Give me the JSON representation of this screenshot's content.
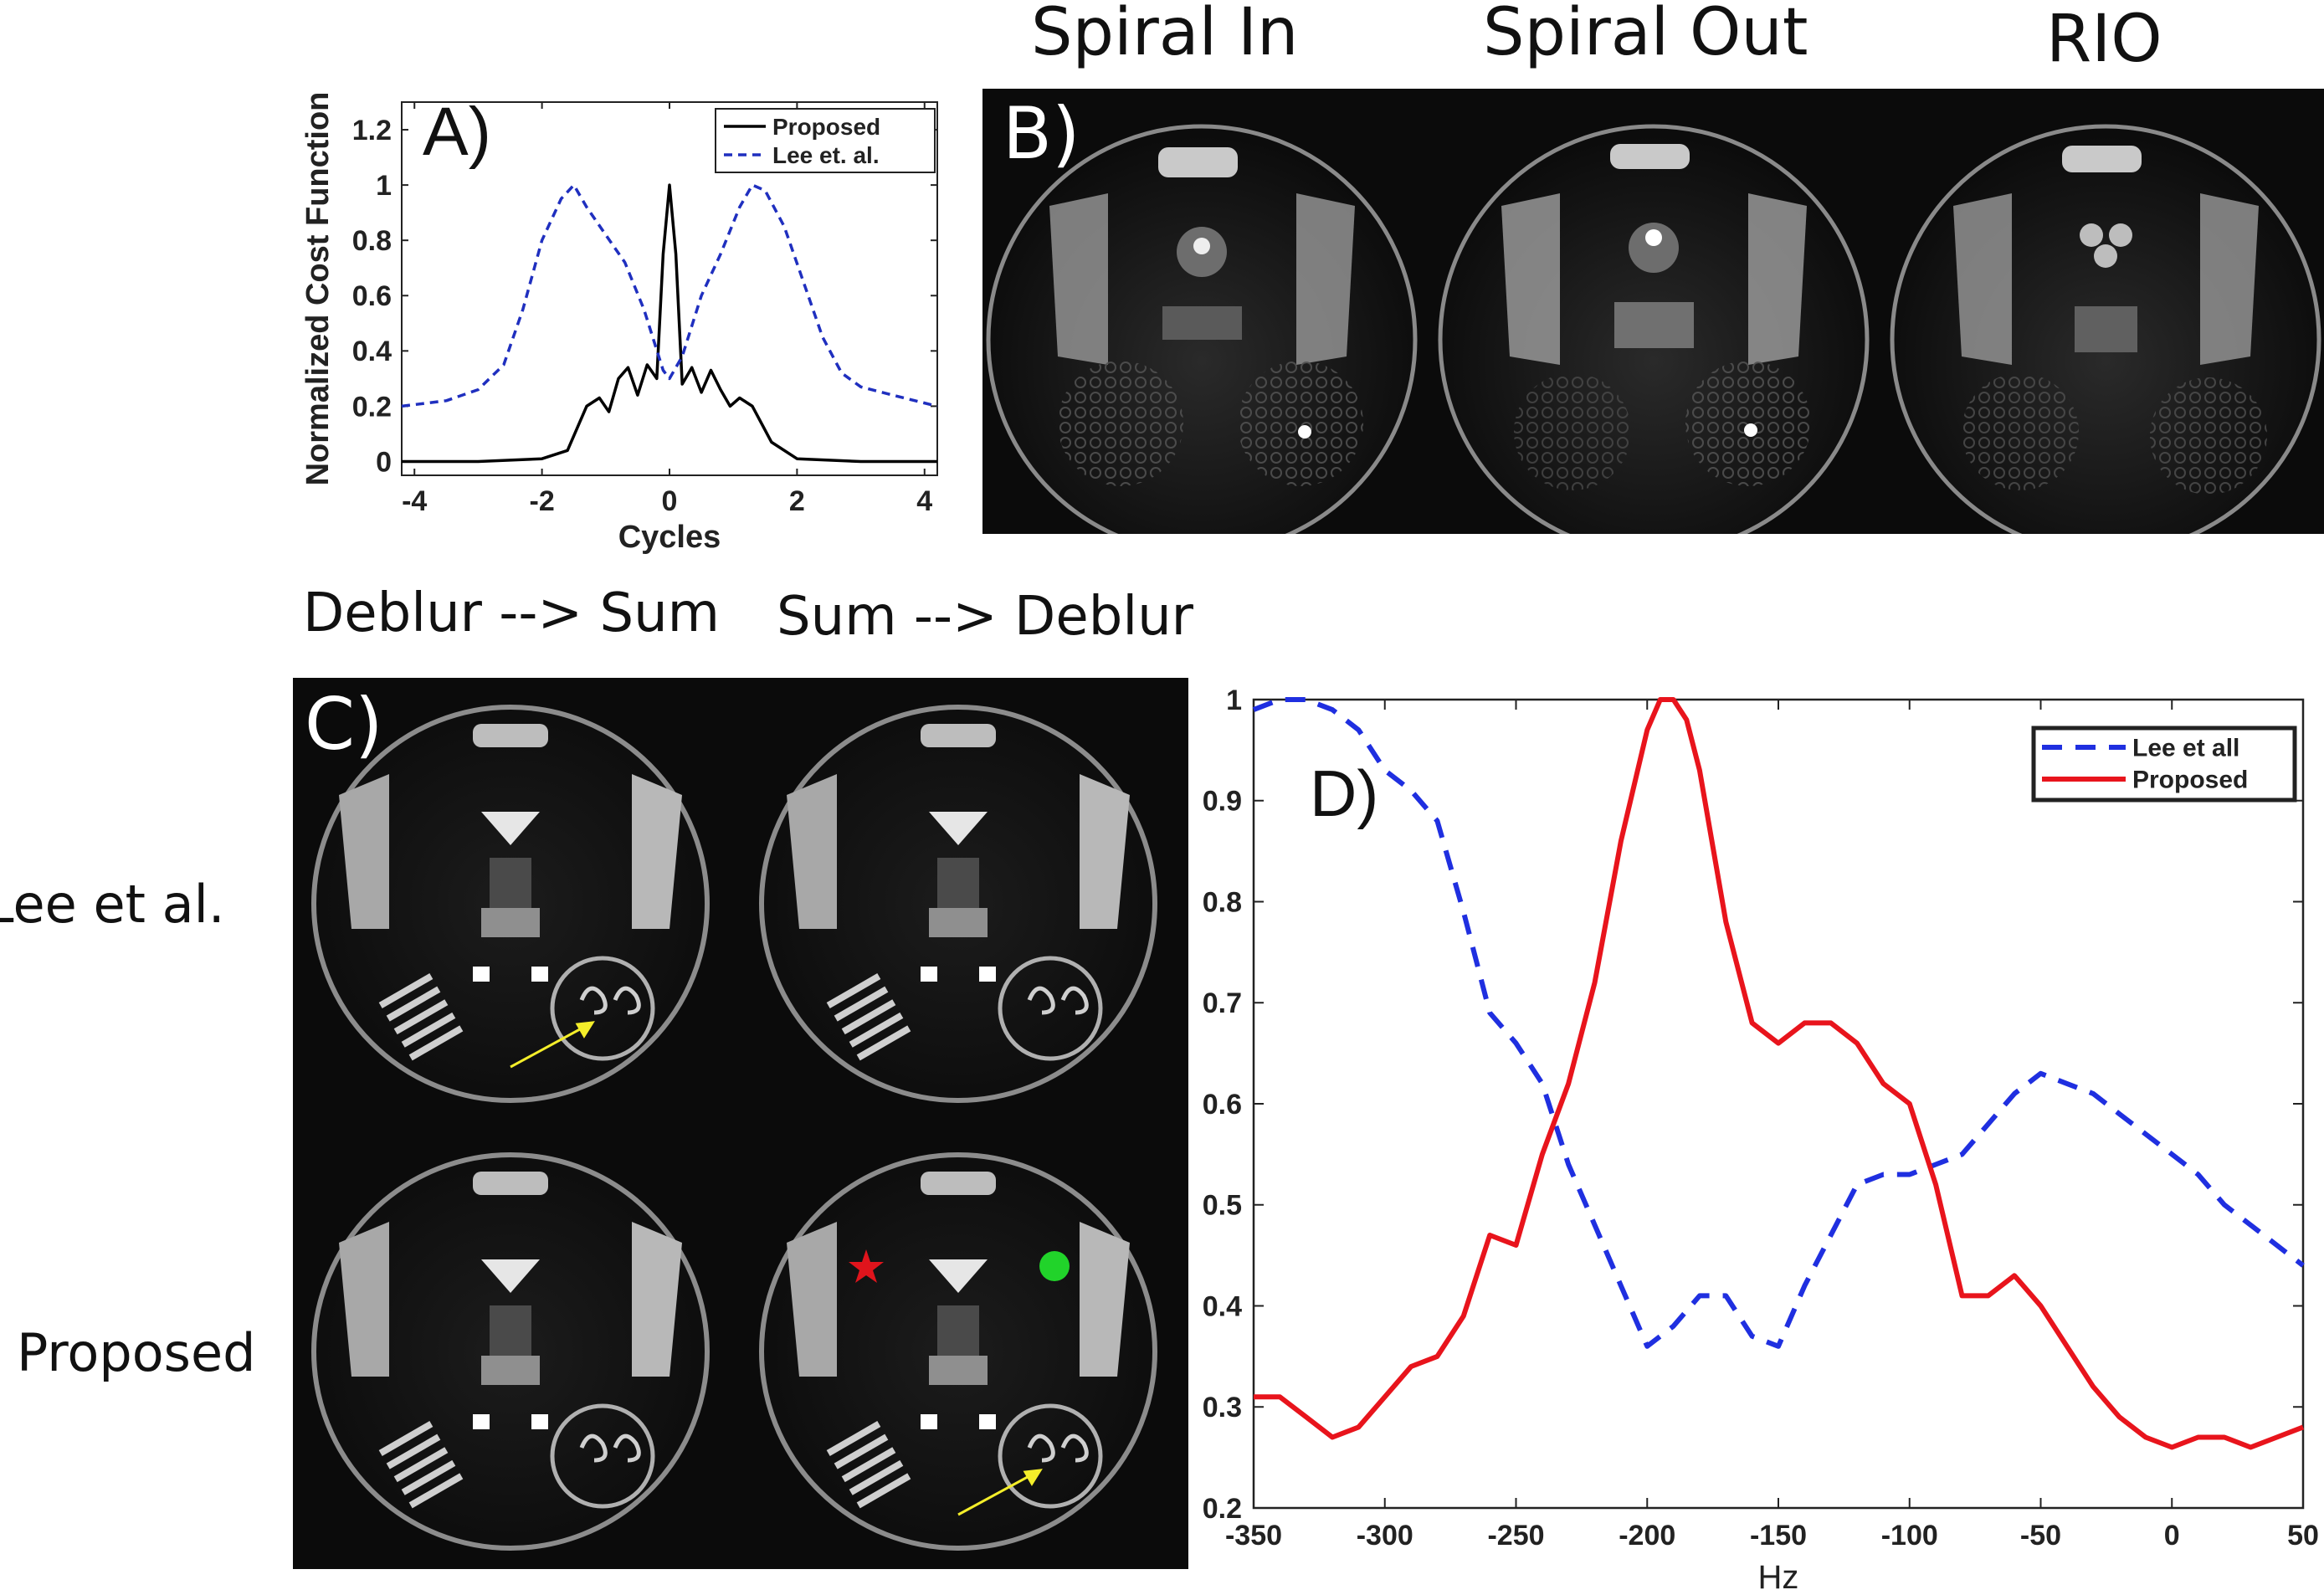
{
  "panel_a": {
    "label": "A)",
    "chart_data": {
      "type": "line",
      "xlabel": "Cycles",
      "ylabel": "Normalized Cost Function",
      "xlim": [
        -4.2,
        4.2
      ],
      "ylim": [
        -0.05,
        1.3
      ],
      "xticks": [
        -4,
        -2,
        0,
        2,
        4
      ],
      "yticks": [
        0,
        0.2,
        0.4,
        0.6,
        0.8,
        1,
        1.2
      ],
      "legend_position": "top-right",
      "series": [
        {
          "name": "Proposed",
          "color": "#000000",
          "style": "solid",
          "x": [
            -4.2,
            -3.0,
            -2.0,
            -1.6,
            -1.3,
            -1.1,
            -0.95,
            -0.8,
            -0.65,
            -0.5,
            -0.35,
            -0.2,
            -0.1,
            0,
            0.1,
            0.2,
            0.35,
            0.5,
            0.65,
            0.8,
            0.95,
            1.1,
            1.3,
            1.6,
            2.0,
            3.0,
            4.2
          ],
          "y": [
            0.0,
            0.0,
            0.01,
            0.04,
            0.2,
            0.23,
            0.18,
            0.3,
            0.34,
            0.24,
            0.35,
            0.3,
            0.75,
            1.0,
            0.75,
            0.28,
            0.34,
            0.25,
            0.33,
            0.26,
            0.2,
            0.23,
            0.2,
            0.07,
            0.01,
            0.0,
            0.0
          ]
        },
        {
          "name": "Lee et. al.",
          "color": "#1f2fbf",
          "style": "dashed",
          "x": [
            -4.2,
            -3.5,
            -3.0,
            -2.6,
            -2.3,
            -2.0,
            -1.7,
            -1.5,
            -1.3,
            -1.0,
            -0.7,
            -0.4,
            -0.1,
            0,
            0.2,
            0.5,
            0.8,
            1.1,
            1.3,
            1.5,
            1.8,
            2.1,
            2.4,
            2.7,
            3.0,
            3.5,
            4.2
          ],
          "y": [
            0.2,
            0.22,
            0.26,
            0.35,
            0.55,
            0.8,
            0.95,
            1.0,
            0.92,
            0.82,
            0.72,
            0.55,
            0.33,
            0.3,
            0.38,
            0.6,
            0.75,
            0.92,
            1.0,
            0.98,
            0.85,
            0.65,
            0.45,
            0.32,
            0.27,
            0.24,
            0.2
          ]
        }
      ]
    }
  },
  "panel_b": {
    "label": "B)",
    "titles": [
      "Spiral In",
      "Spiral Out",
      "RIO"
    ]
  },
  "panel_c": {
    "label": "C)",
    "col_titles": [
      "Deblur --> Sum",
      "Sum --> Deblur"
    ],
    "row_labels": [
      "Lee et al.",
      "Proposed"
    ],
    "markers": {
      "star_color": "#e0141c",
      "dot_color": "#21d32a",
      "arrow_color": "#f4ee2a"
    }
  },
  "panel_d": {
    "label": "D)",
    "chart_data": {
      "type": "line",
      "xlabel": "Hz",
      "ylabel": "",
      "xlim": [
        -350,
        50
      ],
      "ylim": [
        0.2,
        1.0
      ],
      "xticks": [
        -350,
        -300,
        -250,
        -200,
        -150,
        -100,
        -50,
        0,
        50
      ],
      "yticks": [
        0.2,
        0.3,
        0.4,
        0.5,
        0.6,
        0.7,
        0.8,
        0.9,
        1
      ],
      "legend_position": "top-right",
      "series": [
        {
          "name": "Lee et all",
          "color": "#1f2fe0",
          "style": "dashed",
          "x": [
            -350,
            -340,
            -330,
            -320,
            -310,
            -300,
            -290,
            -280,
            -270,
            -260,
            -250,
            -240,
            -230,
            -220,
            -210,
            -200,
            -190,
            -180,
            -170,
            -160,
            -150,
            -140,
            -130,
            -120,
            -110,
            -100,
            -90,
            -80,
            -70,
            -60,
            -50,
            -40,
            -30,
            -20,
            -10,
            0,
            10,
            20,
            30,
            40,
            50
          ],
          "y": [
            0.99,
            1.0,
            1.0,
            0.99,
            0.97,
            0.93,
            0.91,
            0.88,
            0.79,
            0.69,
            0.66,
            0.62,
            0.54,
            0.48,
            0.42,
            0.36,
            0.38,
            0.41,
            0.41,
            0.37,
            0.36,
            0.42,
            0.47,
            0.52,
            0.53,
            0.53,
            0.54,
            0.55,
            0.58,
            0.61,
            0.63,
            0.62,
            0.61,
            0.59,
            0.57,
            0.55,
            0.53,
            0.5,
            0.48,
            0.46,
            0.44
          ]
        },
        {
          "name": "Proposed",
          "color": "#e8141c",
          "style": "solid",
          "x": [
            -350,
            -340,
            -330,
            -320,
            -310,
            -300,
            -290,
            -280,
            -270,
            -260,
            -250,
            -240,
            -230,
            -220,
            -210,
            -200,
            -195,
            -190,
            -185,
            -180,
            -170,
            -160,
            -150,
            -140,
            -130,
            -120,
            -110,
            -100,
            -90,
            -80,
            -70,
            -60,
            -50,
            -40,
            -30,
            -20,
            -10,
            0,
            10,
            20,
            30,
            40,
            50
          ],
          "y": [
            0.31,
            0.31,
            0.29,
            0.27,
            0.28,
            0.31,
            0.34,
            0.35,
            0.39,
            0.47,
            0.46,
            0.55,
            0.62,
            0.72,
            0.86,
            0.97,
            1.0,
            1.0,
            0.98,
            0.93,
            0.78,
            0.68,
            0.66,
            0.68,
            0.68,
            0.66,
            0.62,
            0.6,
            0.52,
            0.41,
            0.41,
            0.43,
            0.4,
            0.36,
            0.32,
            0.29,
            0.27,
            0.26,
            0.27,
            0.27,
            0.26,
            0.27,
            0.28
          ]
        }
      ]
    }
  }
}
